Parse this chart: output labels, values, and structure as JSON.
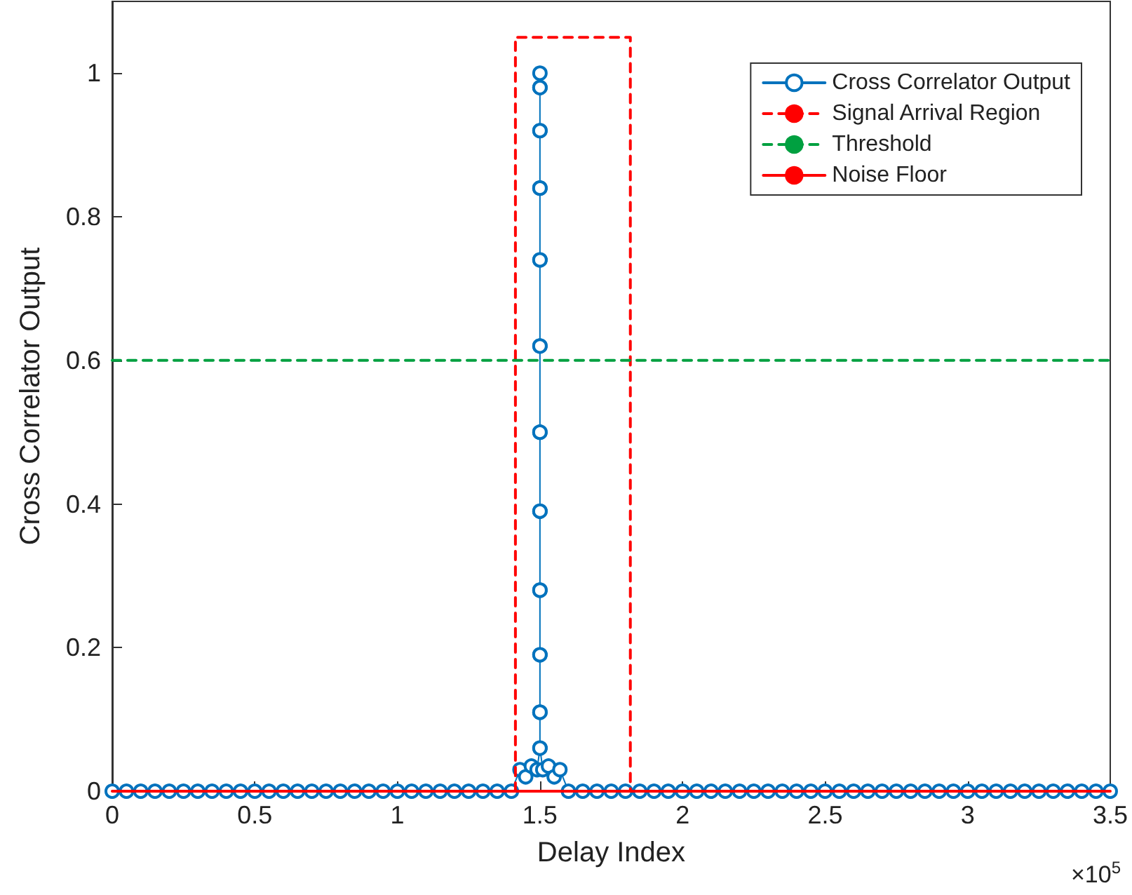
{
  "chart_data": {
    "type": "line",
    "xlabel": "Delay Index",
    "ylabel": "Cross Correlator Output",
    "annotations": [
      "×10$^{5}$"
    ],
    "xlim": [
      0,
      3.5
    ],
    "ylim": [
      0,
      1.1
    ],
    "xticks": [
      0,
      0.5,
      1,
      1.5,
      2,
      2.5,
      3,
      3.5
    ],
    "yticks": [
      0,
      0.2,
      0.4,
      0.6,
      0.8,
      1
    ],
    "grid": false,
    "legend": "top right",
    "series": [
      {
        "name": "Cross Correlator Output",
        "color": "#0072bd",
        "marker": "circle",
        "line_style": "solid",
        "x": [
          0,
          0.05,
          0.1,
          0.15,
          0.2,
          0.25,
          0.3,
          0.35,
          0.4,
          0.45,
          0.5,
          0.55,
          0.6,
          0.65,
          0.7,
          0.75,
          0.8,
          0.85,
          0.9,
          0.95,
          1,
          1.05,
          1.1,
          1.15,
          1.2,
          1.25,
          1.3,
          1.35,
          1.4,
          1.43,
          1.45,
          1.47,
          1.49,
          1.5,
          1.5,
          1.5,
          1.5,
          1.5,
          1.5,
          1.5,
          1.5,
          1.5,
          1.5,
          1.5,
          1.5,
          1.5,
          1.5,
          1.5,
          1.5,
          1.5,
          1.5,
          1.5,
          1.5,
          1.5,
          1.5,
          1.5,
          1.51,
          1.53,
          1.55,
          1.57,
          1.6,
          1.65,
          1.7,
          1.75,
          1.8,
          1.85,
          1.9,
          1.95,
          2,
          2.05,
          2.1,
          2.15,
          2.2,
          2.25,
          2.3,
          2.35,
          2.4,
          2.45,
          2.5,
          2.55,
          2.6,
          2.65,
          2.7,
          2.75,
          2.8,
          2.85,
          2.9,
          2.95,
          3,
          3.05,
          3.1,
          3.15,
          3.2,
          3.25,
          3.3,
          3.35,
          3.4,
          3.45,
          3.5
        ],
        "values": [
          0,
          0,
          0,
          0,
          0,
          0,
          0,
          0,
          0,
          0,
          0,
          0,
          0,
          0,
          0,
          0,
          0,
          0,
          0,
          0,
          0,
          0,
          0,
          0,
          0,
          0,
          0,
          0,
          0,
          0.03,
          0.02,
          0.035,
          0.03,
          0.06,
          0.11,
          0.19,
          0.28,
          0.39,
          0.5,
          0.62,
          0.74,
          0.84,
          0.92,
          0.98,
          1.0,
          0.98,
          0.92,
          0.84,
          0.74,
          0.62,
          0.5,
          0.39,
          0.28,
          0.19,
          0.11,
          0.06,
          0.03,
          0.035,
          0.02,
          0.03,
          0,
          0,
          0,
          0,
          0,
          0,
          0,
          0,
          0,
          0,
          0,
          0,
          0,
          0,
          0,
          0,
          0,
          0,
          0,
          0,
          0,
          0,
          0,
          0,
          0,
          0,
          0,
          0,
          0,
          0,
          0,
          0,
          0,
          0,
          0,
          0,
          0,
          0,
          0
        ]
      },
      {
        "name": "Signal Arrival Region",
        "color": "#ff0000",
        "marker": "none",
        "line_style": "dashed",
        "x": [
          1.414,
          1.414,
          1.817,
          1.817
        ],
        "values": [
          0,
          1.05,
          1.05,
          0
        ]
      },
      {
        "name": "Threshold",
        "color": "#00a040",
        "marker": "none",
        "line_style": "dashed",
        "x": [
          0,
          3.5
        ],
        "values": [
          0.6,
          0.6
        ]
      },
      {
        "name": "Noise Floor",
        "color": "#ff0000",
        "marker": "none",
        "line_style": "solid",
        "x": [
          0,
          3.5
        ],
        "values": [
          0,
          0
        ]
      }
    ]
  }
}
